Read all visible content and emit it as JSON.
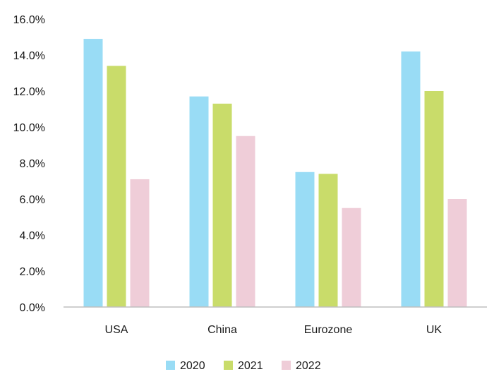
{
  "chart_data": {
    "type": "bar",
    "categories": [
      "USA",
      "China",
      "Eurozone",
      "UK"
    ],
    "series": [
      {
        "name": "2020",
        "color": "#99dcf5",
        "values": [
          14.9,
          11.7,
          7.5,
          14.2
        ]
      },
      {
        "name": "2021",
        "color": "#c9dc6a",
        "values": [
          13.4,
          11.3,
          7.4,
          12.0
        ]
      },
      {
        "name": "2022",
        "color": "#efcdd8",
        "values": [
          7.1,
          9.5,
          5.5,
          6.0
        ]
      }
    ],
    "y_ticks": [
      "0.0%",
      "2.0%",
      "4.0%",
      "6.0%",
      "8.0%",
      "10.0%",
      "12.0%",
      "14.0%",
      "16.0%"
    ],
    "ylim": [
      0,
      16
    ],
    "grid": false,
    "legend_position": "bottom",
    "axis_color": "#bfbfbf"
  }
}
